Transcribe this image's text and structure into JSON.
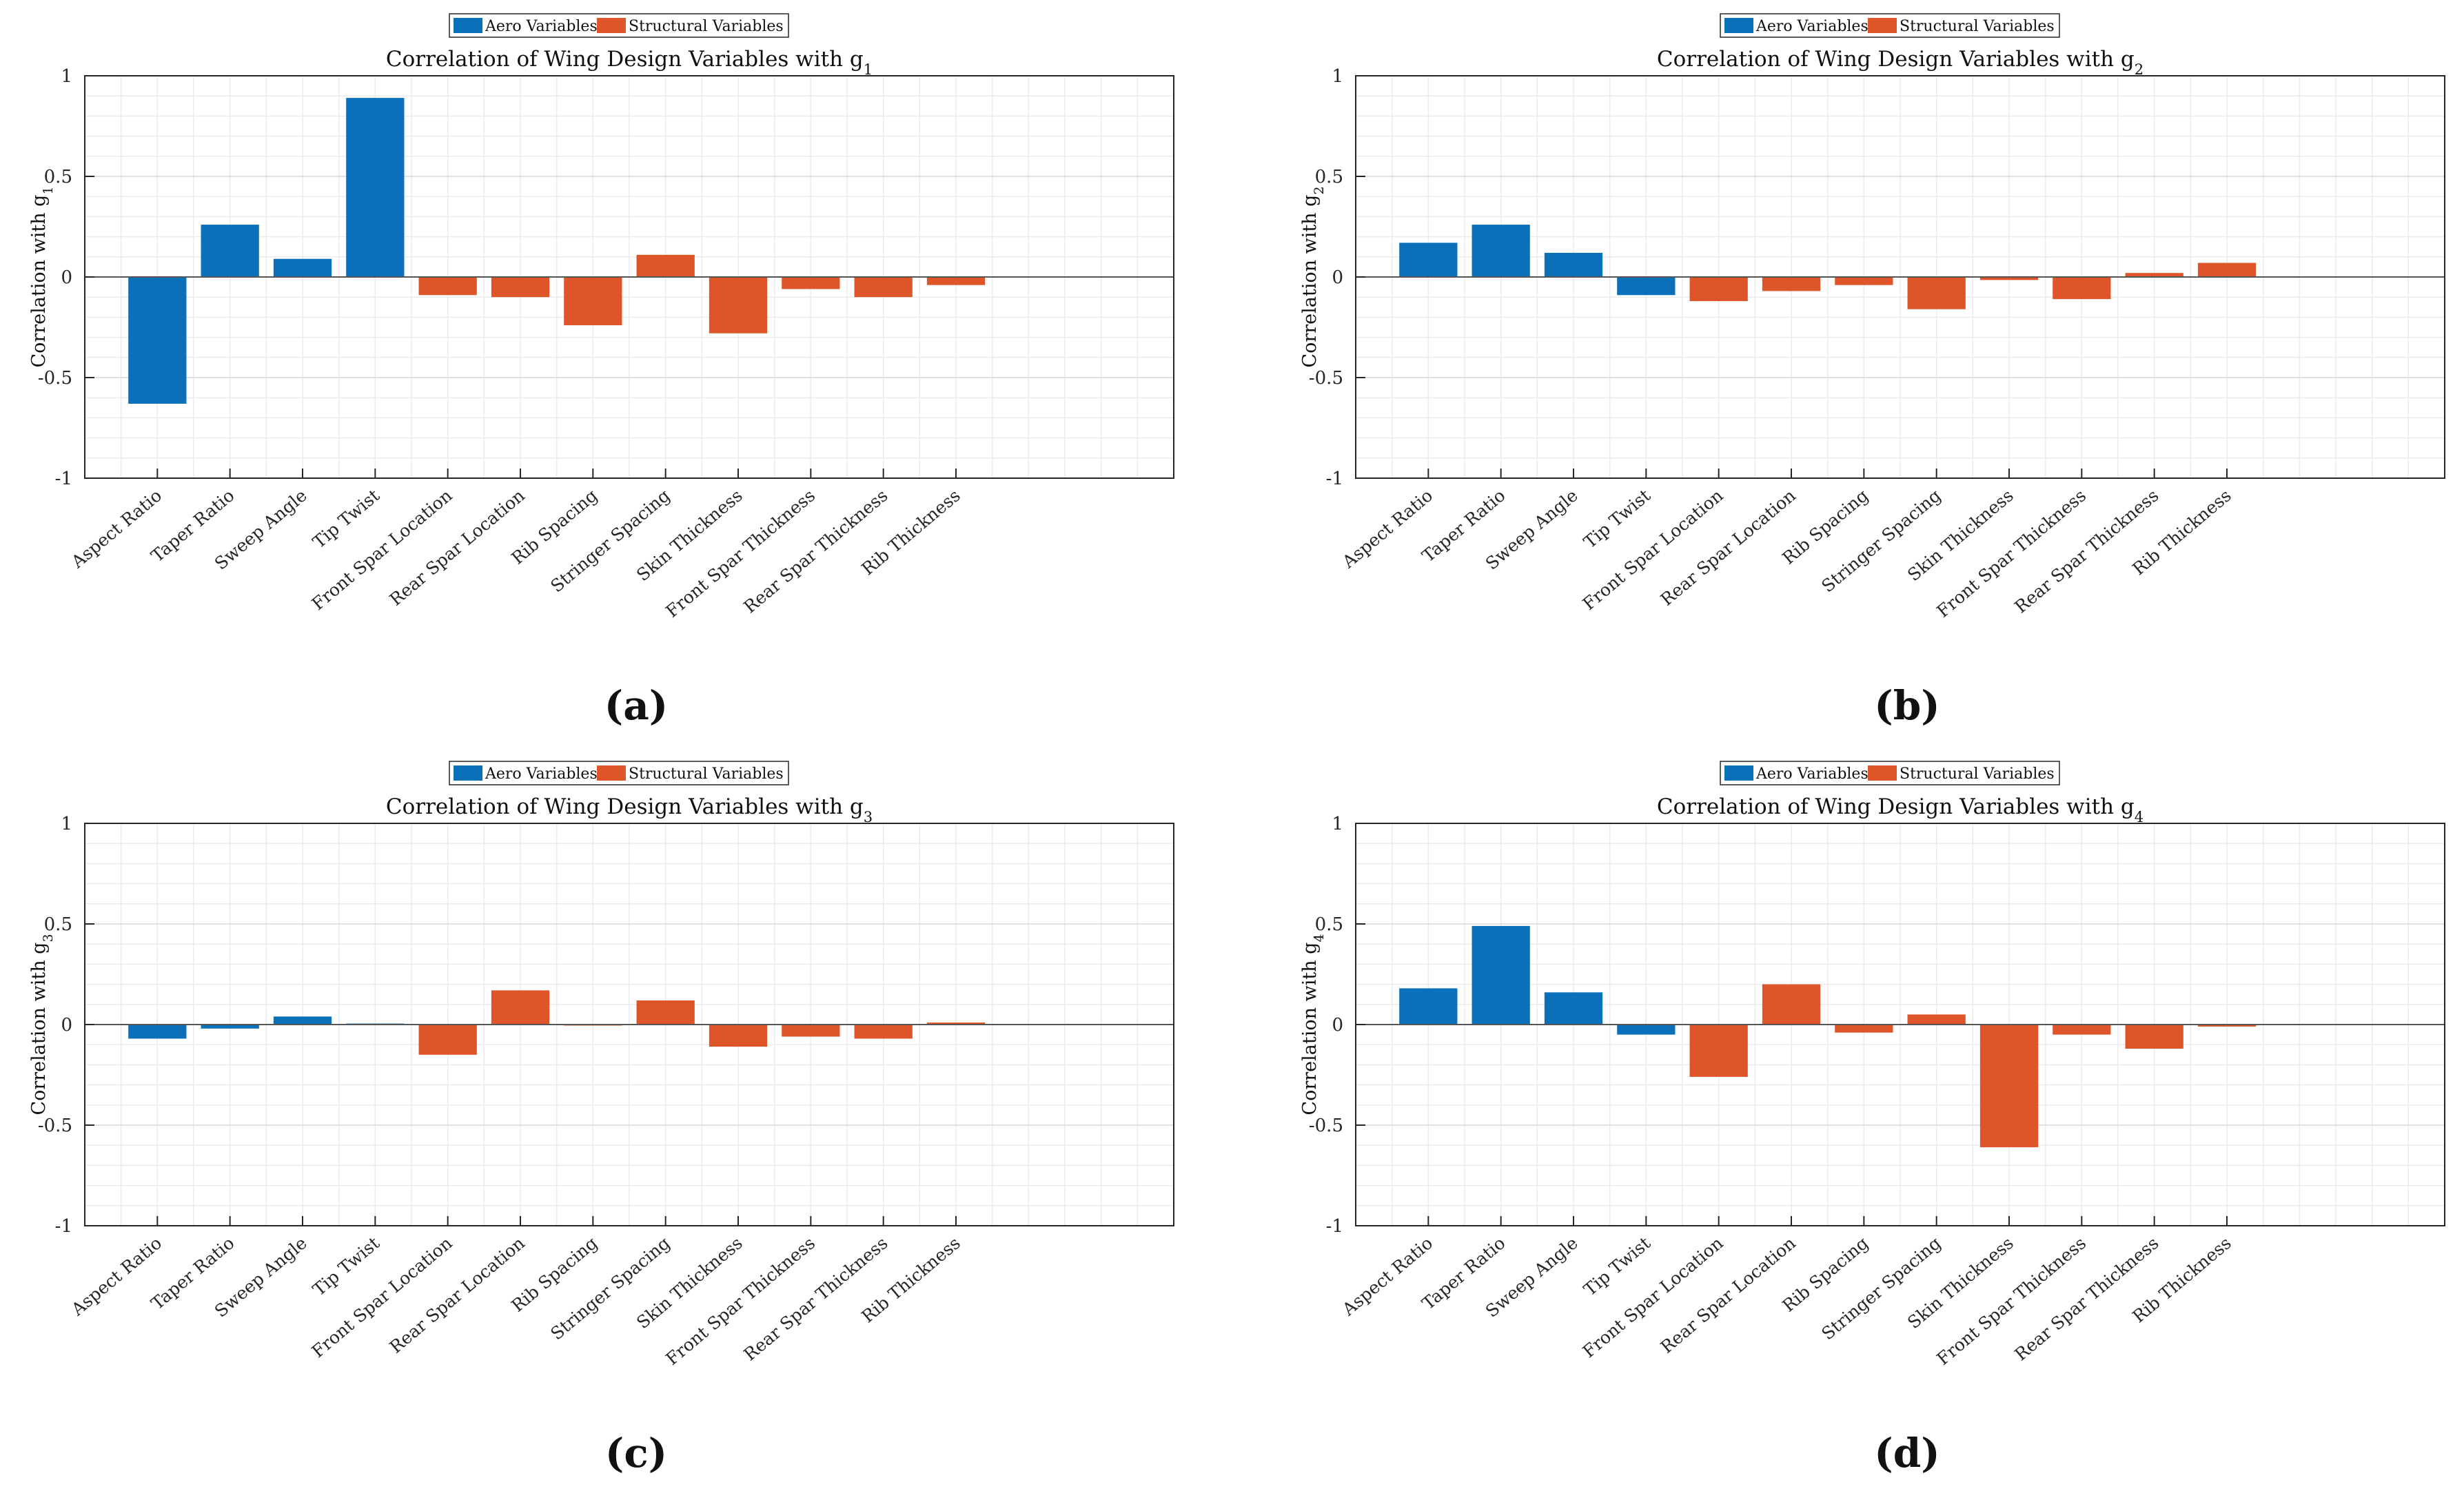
{
  "legend": {
    "aero_label": "Aero Variables",
    "struct_label": "Structural Variables",
    "aero_color": "#0A70BA",
    "struct_color": "#DF552A"
  },
  "axis_ticks": [
    "-1",
    "-0.5",
    "0",
    "0.5",
    "1"
  ],
  "categories": [
    "Aspect Ratio",
    "Taper Ratio",
    "Sweep Angle",
    "Tip Twist",
    "Front Spar Location",
    "Rear Spar Location",
    "Rib Spacing",
    "Stringer Spacing",
    "Skin Thickness",
    "Front Spar Thickness",
    "Rear Spar Thickness",
    "Rib Thickness"
  ],
  "chart_data": [
    {
      "type": "bar",
      "panel_label": "(a)",
      "title": "Correlation of Wing Design Variables with g",
      "title_subscript": "1",
      "ylabel": "Correlation with g",
      "ylabel_subscript": "1",
      "ylim": [
        -1,
        1
      ],
      "grid": true,
      "legend_position": "top",
      "categories": [
        "Aspect Ratio",
        "Taper Ratio",
        "Sweep Angle",
        "Tip Twist",
        "Front Spar Location",
        "Rear Spar Location",
        "Rib Spacing",
        "Stringer Spacing",
        "Skin Thickness",
        "Front Spar Thickness",
        "Rear Spar Thickness",
        "Rib Thickness"
      ],
      "series": [
        {
          "name": "Aero Variables",
          "values": [
            -0.63,
            0.26,
            0.09,
            0.89,
            null,
            null,
            null,
            null,
            null,
            null,
            null,
            null
          ]
        },
        {
          "name": "Structural Variables",
          "values": [
            null,
            null,
            null,
            null,
            -0.09,
            -0.1,
            -0.24,
            0.11,
            -0.28,
            -0.06,
            -0.1,
            -0.04
          ]
        }
      ]
    },
    {
      "type": "bar",
      "panel_label": "(b)",
      "title": "Correlation of Wing Design Variables with g",
      "title_subscript": "2",
      "ylabel": "Correlation with g",
      "ylabel_subscript": "2",
      "ylim": [
        -1,
        1
      ],
      "grid": true,
      "legend_position": "top",
      "categories": [
        "Aspect Ratio",
        "Taper Ratio",
        "Sweep Angle",
        "Tip Twist",
        "Front Spar Location",
        "Rear Spar Location",
        "Rib Spacing",
        "Stringer Spacing",
        "Skin Thickness",
        "Front Spar Thickness",
        "Rear Spar Thickness",
        "Rib Thickness"
      ],
      "series": [
        {
          "name": "Aero Variables",
          "values": [
            0.17,
            0.26,
            0.12,
            -0.09,
            null,
            null,
            null,
            null,
            null,
            null,
            null,
            null
          ]
        },
        {
          "name": "Structural Variables",
          "values": [
            null,
            null,
            null,
            null,
            -0.12,
            -0.07,
            -0.04,
            -0.16,
            -0.015,
            -0.11,
            0.02,
            0.07
          ]
        }
      ]
    },
    {
      "type": "bar",
      "panel_label": "(c)",
      "title": "Correlation of Wing Design Variables with g",
      "title_subscript": "3",
      "ylabel": "Correlation with g",
      "ylabel_subscript": "3",
      "ylim": [
        -1,
        1
      ],
      "grid": true,
      "legend_position": "top",
      "categories": [
        "Aspect Ratio",
        "Taper Ratio",
        "Sweep Angle",
        "Tip Twist",
        "Front Spar Location",
        "Rear Spar Location",
        "Rib Spacing",
        "Stringer Spacing",
        "Skin Thickness",
        "Front Spar Thickness",
        "Rear Spar Thickness",
        "Rib Thickness"
      ],
      "series": [
        {
          "name": "Aero Variables",
          "values": [
            -0.07,
            -0.02,
            0.04,
            0.005,
            null,
            null,
            null,
            null,
            null,
            null,
            null,
            null
          ]
        },
        {
          "name": "Structural Variables",
          "values": [
            null,
            null,
            null,
            null,
            -0.15,
            0.17,
            0.0,
            0.12,
            -0.11,
            -0.06,
            -0.07,
            0.01
          ]
        }
      ]
    },
    {
      "type": "bar",
      "panel_label": "(d)",
      "title": "Correlation of Wing Design Variables with g",
      "title_subscript": "4",
      "ylabel": "Correlation with g",
      "ylabel_subscript": "4",
      "ylim": [
        -1,
        1
      ],
      "grid": true,
      "legend_position": "top",
      "categories": [
        "Aspect Ratio",
        "Taper Ratio",
        "Sweep Angle",
        "Tip Twist",
        "Front Spar Location",
        "Rear Spar Location",
        "Rib Spacing",
        "Stringer Spacing",
        "Skin Thickness",
        "Front Spar Thickness",
        "Rear Spar Thickness",
        "Rib Thickness"
      ],
      "series": [
        {
          "name": "Aero Variables",
          "values": [
            0.18,
            0.49,
            0.16,
            -0.05,
            null,
            null,
            null,
            null,
            null,
            null,
            null,
            null
          ]
        },
        {
          "name": "Structural Variables",
          "values": [
            null,
            null,
            null,
            null,
            -0.26,
            0.2,
            -0.04,
            0.05,
            -0.61,
            -0.05,
            -0.12,
            -0.01
          ]
        }
      ]
    }
  ]
}
